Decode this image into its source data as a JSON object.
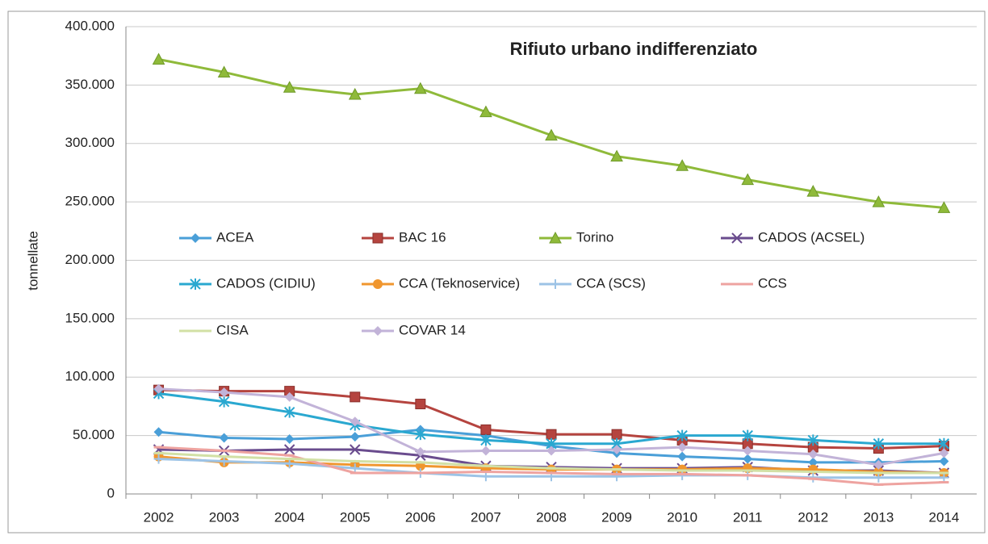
{
  "chart_data": {
    "type": "line",
    "title": "Rifiuto urbano indifferenziato",
    "y_label": "tonnellate",
    "categories": [
      "2002",
      "2003",
      "2004",
      "2005",
      "2006",
      "2007",
      "2008",
      "2009",
      "2010",
      "2011",
      "2012",
      "2013",
      "2014"
    ],
    "ylim": [
      0,
      400000
    ],
    "yticks": [
      0,
      {
        "value": 50000,
        "label": "50.000"
      },
      {
        "value": 100000,
        "label": "100.000"
      },
      {
        "value": 150000,
        "label": "150.000"
      },
      {
        "value": 200000,
        "label": "200.000"
      },
      {
        "value": 250000,
        "label": "250.000"
      },
      {
        "value": 300000,
        "label": "300.000"
      },
      {
        "value": 350000,
        "label": "350.000"
      },
      {
        "value": 400000,
        "label": "400.000"
      }
    ],
    "grid": true,
    "series": [
      {
        "name": "ACEA",
        "color": "#4a9fd8",
        "marker": "diamond",
        "values": [
          53000,
          48000,
          47000,
          49000,
          55000,
          50000,
          41000,
          35000,
          32000,
          30000,
          27000,
          27000,
          28000
        ]
      },
      {
        "name": "BAC 16",
        "color": "#b5443f",
        "marker": "square",
        "values": [
          89000,
          88000,
          88000,
          83000,
          77000,
          55000,
          51000,
          51000,
          46000,
          43000,
          40000,
          39000,
          41000
        ]
      },
      {
        "name": "Torino",
        "color": "#8fba3a",
        "marker": "triangle",
        "values": [
          372000,
          361000,
          348000,
          342000,
          347000,
          327000,
          307000,
          289000,
          281000,
          269000,
          259000,
          250000,
          245000
        ]
      },
      {
        "name": "CADOS (ACSEL)",
        "color": "#6a4c8e",
        "marker": "x",
        "values": [
          38000,
          37000,
          38000,
          38000,
          33000,
          24000,
          23000,
          22000,
          22000,
          23000,
          20000,
          20000,
          18000
        ]
      },
      {
        "name": "CADOS (CIDIU)",
        "color": "#2aa8d0",
        "marker": "star",
        "values": [
          86000,
          79000,
          70000,
          59000,
          51000,
          46000,
          43000,
          43000,
          50000,
          50000,
          46000,
          43000,
          43000
        ]
      },
      {
        "name": "CCA (Teknoservice)",
        "color": "#f0962e",
        "marker": "circle",
        "values": [
          32000,
          27000,
          27000,
          25000,
          24000,
          22000,
          21000,
          21000,
          21000,
          22000,
          21000,
          19000,
          18000
        ]
      },
      {
        "name": "CCA (SCS)",
        "color": "#9cc3e6",
        "marker": "plus",
        "values": [
          30000,
          28000,
          26000,
          22000,
          18000,
          15000,
          15000,
          15000,
          16000,
          16000,
          14000,
          14000,
          14000
        ]
      },
      {
        "name": "CCS",
        "color": "#eea3a0",
        "marker": "dash",
        "values": [
          40000,
          37000,
          33000,
          18000,
          18000,
          19000,
          18000,
          17000,
          17000,
          16000,
          13000,
          8000,
          10000
        ]
      },
      {
        "name": "CISA",
        "color": "#d2e0a5",
        "marker": "dash",
        "values": [
          35000,
          32000,
          30000,
          28000,
          27000,
          24000,
          22000,
          21000,
          20000,
          20000,
          19000,
          18000,
          18000
        ]
      },
      {
        "name": "COVAR 14",
        "color": "#c2b3d8",
        "marker": "diamond",
        "values": [
          90000,
          87000,
          83000,
          62000,
          36000,
          37000,
          37000,
          38000,
          40000,
          37000,
          34000,
          25000,
          35000
        ]
      }
    ]
  }
}
